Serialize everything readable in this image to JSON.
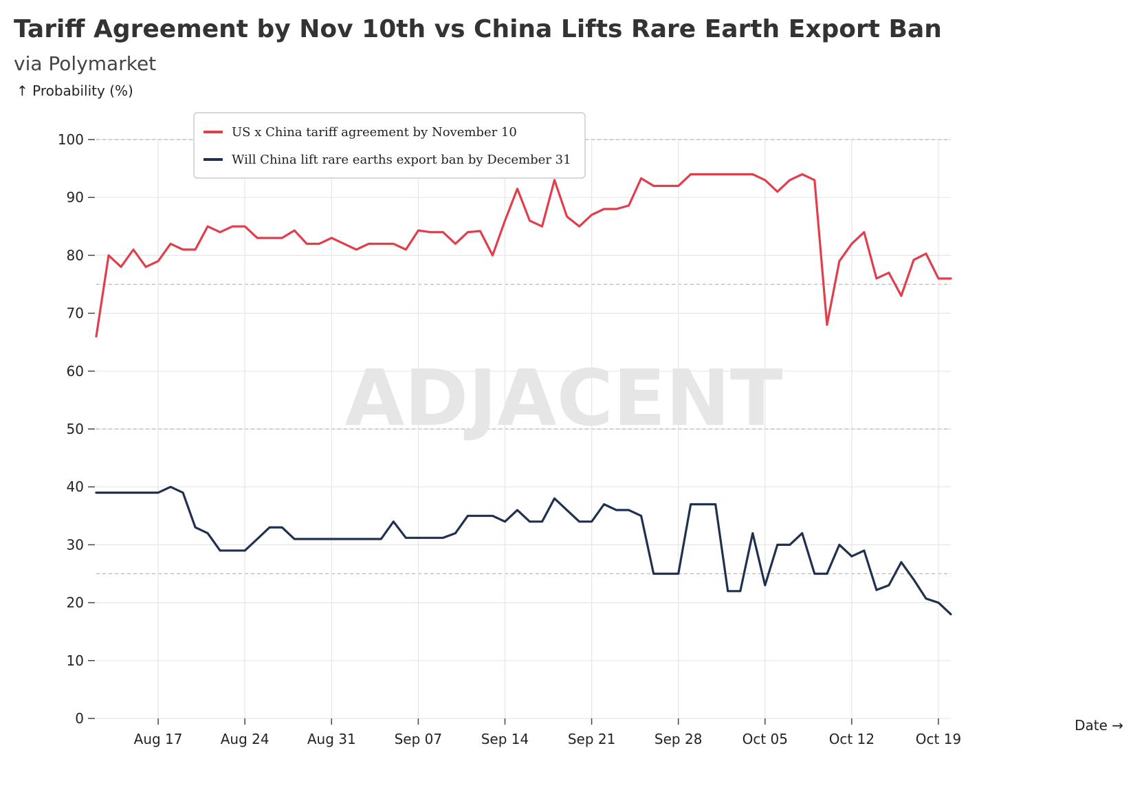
{
  "header": {
    "title": "Tariff Agreement by Nov 10th vs China Lifts Rare Earth Export Ban",
    "subtitle": "via Polymarket"
  },
  "watermark": "ADJACENT",
  "chart_data": {
    "type": "line",
    "title": "Tariff Agreement by Nov 10th vs China Lifts Rare Earth Export Ban",
    "subtitle": "via Polymarket",
    "ylabel": "↑ Probability (%)",
    "xlabel": "Date →",
    "ylim": [
      0,
      100
    ],
    "yticks": [
      0,
      10,
      20,
      30,
      40,
      50,
      60,
      70,
      80,
      90,
      100
    ],
    "dashed_reference_lines": [
      25,
      50,
      75,
      100
    ],
    "grid": true,
    "legend_position": "top-left",
    "x_start_day": 0,
    "x_end_day": 69,
    "x_ticks": [
      {
        "day": 5,
        "label": "Aug 17"
      },
      {
        "day": 12,
        "label": "Aug 24"
      },
      {
        "day": 19,
        "label": "Aug 31"
      },
      {
        "day": 26,
        "label": "Sep 07"
      },
      {
        "day": 33,
        "label": "Sep 14"
      },
      {
        "day": 40,
        "label": "Sep 21"
      },
      {
        "day": 47,
        "label": "Sep 28"
      },
      {
        "day": 54,
        "label": "Oct 05"
      },
      {
        "day": 61,
        "label": "Oct 12"
      },
      {
        "day": 68,
        "label": "Oct 19"
      }
    ],
    "series": [
      {
        "name": "US x China tariff agreement by November 10",
        "color": "#e23d4b",
        "points": [
          [
            0,
            66
          ],
          [
            1,
            80
          ],
          [
            2,
            78
          ],
          [
            3,
            81
          ],
          [
            4,
            78
          ],
          [
            5,
            79
          ],
          [
            6,
            82
          ],
          [
            7,
            81
          ],
          [
            8,
            81
          ],
          [
            9,
            85
          ],
          [
            10,
            84
          ],
          [
            11,
            85
          ],
          [
            12,
            85
          ],
          [
            13,
            83
          ],
          [
            14,
            83
          ],
          [
            15,
            83
          ],
          [
            16,
            84.3
          ],
          [
            17,
            82
          ],
          [
            18,
            82
          ],
          [
            19,
            83
          ],
          [
            20,
            82
          ],
          [
            21,
            81
          ],
          [
            22,
            82
          ],
          [
            23,
            82
          ],
          [
            24,
            82
          ],
          [
            25,
            81
          ],
          [
            26,
            84.3
          ],
          [
            27,
            84
          ],
          [
            28,
            84
          ],
          [
            29,
            82
          ],
          [
            30,
            84
          ],
          [
            31,
            84.2
          ],
          [
            32,
            80
          ],
          [
            33,
            86
          ],
          [
            34,
            91.5
          ],
          [
            35,
            86
          ],
          [
            36,
            85
          ],
          [
            37,
            93
          ],
          [
            38,
            86.7
          ],
          [
            39,
            85
          ],
          [
            40,
            87
          ],
          [
            41,
            88
          ],
          [
            42,
            88
          ],
          [
            43,
            88.6
          ],
          [
            44,
            93.3
          ],
          [
            45,
            92
          ],
          [
            46,
            92
          ],
          [
            47,
            92
          ],
          [
            48,
            94
          ],
          [
            49,
            94
          ],
          [
            50,
            94
          ],
          [
            51,
            94
          ],
          [
            52,
            94
          ],
          [
            53,
            94
          ],
          [
            54,
            93
          ],
          [
            55,
            91
          ],
          [
            56,
            93
          ],
          [
            57,
            94
          ],
          [
            58,
            93
          ],
          [
            59,
            68
          ],
          [
            60,
            79
          ],
          [
            61,
            82
          ],
          [
            62,
            84
          ],
          [
            63,
            76
          ],
          [
            64,
            77
          ],
          [
            65,
            73
          ],
          [
            66,
            79.2
          ],
          [
            67,
            80.3
          ],
          [
            68,
            76
          ],
          [
            69,
            76
          ]
        ]
      },
      {
        "name": "Will China lift rare earths export ban by December 31",
        "color": "#1f3050",
        "points": [
          [
            0,
            39
          ],
          [
            1,
            39
          ],
          [
            2,
            39
          ],
          [
            3,
            39
          ],
          [
            4,
            39
          ],
          [
            5,
            39
          ],
          [
            6,
            40
          ],
          [
            7,
            39
          ],
          [
            8,
            33
          ],
          [
            9,
            32
          ],
          [
            10,
            29
          ],
          [
            11,
            29
          ],
          [
            12,
            29
          ],
          [
            13,
            31
          ],
          [
            14,
            33
          ],
          [
            15,
            33
          ],
          [
            16,
            31
          ],
          [
            17,
            31
          ],
          [
            18,
            31
          ],
          [
            19,
            31
          ],
          [
            20,
            31
          ],
          [
            21,
            31
          ],
          [
            22,
            31
          ],
          [
            23,
            31
          ],
          [
            24,
            34
          ],
          [
            25,
            31.2
          ],
          [
            26,
            31.2
          ],
          [
            27,
            31.2
          ],
          [
            28,
            31.2
          ],
          [
            29,
            32
          ],
          [
            30,
            35
          ],
          [
            31,
            35
          ],
          [
            32,
            35
          ],
          [
            33,
            34
          ],
          [
            34,
            36
          ],
          [
            35,
            34
          ],
          [
            36,
            34
          ],
          [
            37,
            38
          ],
          [
            38,
            36
          ],
          [
            39,
            34
          ],
          [
            40,
            34
          ],
          [
            41,
            37
          ],
          [
            42,
            36
          ],
          [
            43,
            36
          ],
          [
            44,
            35
          ],
          [
            45,
            25
          ],
          [
            46,
            25
          ],
          [
            47,
            25
          ],
          [
            48,
            37
          ],
          [
            49,
            37
          ],
          [
            50,
            37
          ],
          [
            51,
            22
          ],
          [
            52,
            22
          ],
          [
            53,
            32
          ],
          [
            54,
            23
          ],
          [
            55,
            30
          ],
          [
            56,
            30
          ],
          [
            57,
            32
          ],
          [
            58,
            25
          ],
          [
            59,
            25
          ],
          [
            60,
            30
          ],
          [
            61,
            28
          ],
          [
            62,
            29
          ],
          [
            63,
            22.2
          ],
          [
            64,
            23
          ],
          [
            65,
            27
          ],
          [
            66,
            24
          ],
          [
            67,
            20.7
          ],
          [
            68,
            20
          ],
          [
            69,
            18
          ]
        ]
      }
    ]
  }
}
